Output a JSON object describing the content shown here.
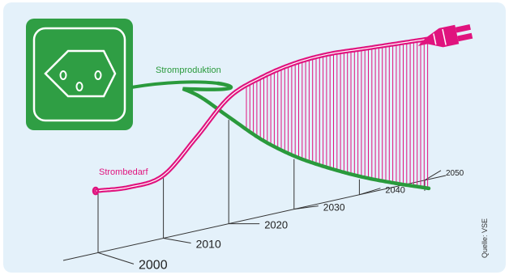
{
  "colors": {
    "background": "#e4f1fa",
    "production": "#2a9a3c",
    "demand": "#e0137e",
    "axis": "#333333",
    "socket": "#2f9e44"
  },
  "chart_data": {
    "type": "line",
    "title": "",
    "xlabel": "",
    "ylabel": "",
    "x_ticks": [
      "2000",
      "2010",
      "2020",
      "2030",
      "2040",
      "2050"
    ],
    "series": [
      {
        "name": "Stromproduktion",
        "x": [
          2000,
          2005,
          2010,
          2015,
          2020,
          2025,
          2030,
          2035,
          2040,
          2045,
          2050
        ],
        "values": [
          100,
          98,
          95,
          86,
          68,
          50,
          37,
          28,
          21,
          16,
          12
        ]
      },
      {
        "name": "Strombedarf",
        "x": [
          2000,
          2005,
          2010,
          2015,
          2020,
          2025,
          2030,
          2035,
          2040,
          2045,
          2050
        ],
        "values": [
          10,
          13,
          22,
          52,
          84,
          100,
          111,
          118,
          122,
          126,
          130
        ]
      }
    ],
    "annotations": [
      "Quelle: VSE"
    ]
  },
  "icons": {
    "socket": "power-socket-icon",
    "plug": "power-plug-icon"
  }
}
